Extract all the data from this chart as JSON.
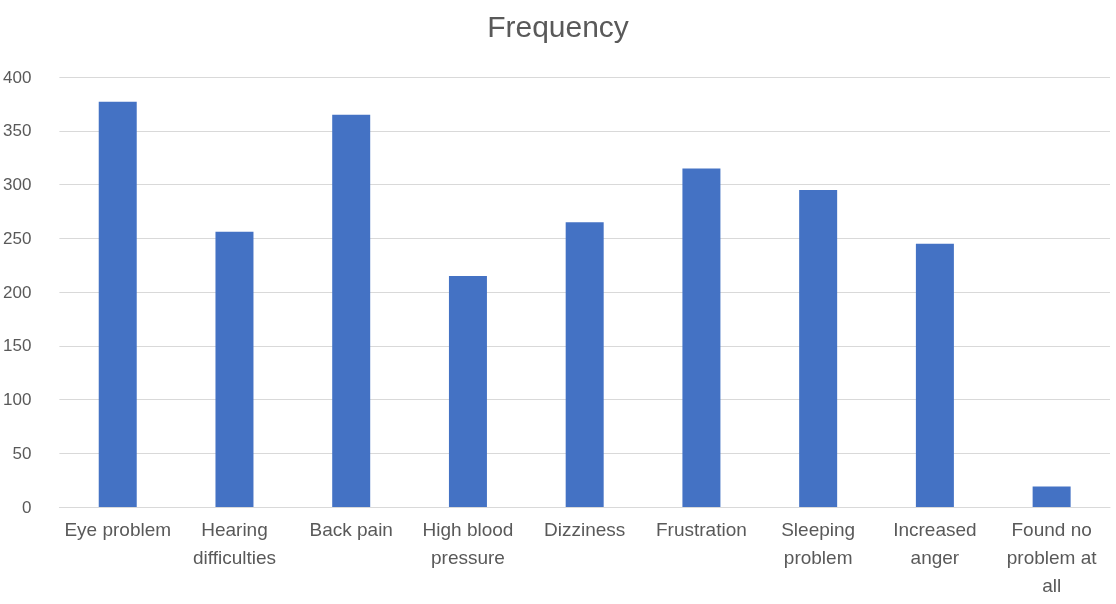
{
  "chart_data": {
    "type": "bar",
    "title": "Frequency",
    "categories": [
      "Eye problem",
      "Hearing difficulties",
      "Back pain",
      "High blood pressure",
      "Dizziness",
      "Frustration",
      "Sleeping problem",
      "Increased anger",
      "Found no problem at all"
    ],
    "values": [
      377,
      256,
      365,
      215,
      265,
      315,
      295,
      245,
      19
    ],
    "color": "#4472c4",
    "ylim": [
      0,
      400
    ],
    "yticks": [
      0,
      50,
      100,
      150,
      200,
      250,
      300,
      350,
      400
    ],
    "grid": "y"
  }
}
